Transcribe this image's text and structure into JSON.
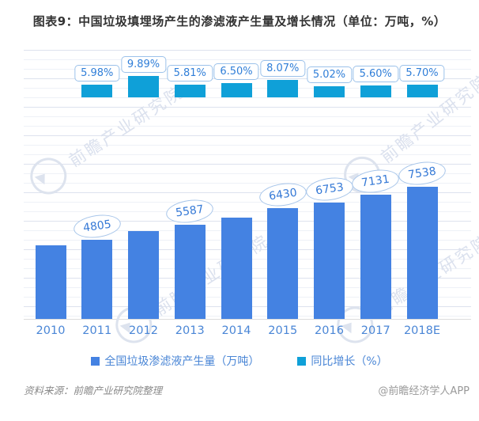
{
  "title": "图表9：中国垃圾填埋场产生的渗滤液产生量及增长情况（单位：万吨，%）",
  "chart_data": {
    "type": "bar",
    "categories": [
      "2010",
      "2011",
      "2012",
      "2013",
      "2014",
      "2015",
      "2016",
      "2017",
      "2018E"
    ],
    "series": [
      {
        "name": "全国垃圾渗滤液产生量（万吨）",
        "color": "#4482e2",
        "values": [
          4534,
          4805,
          5280,
          5587,
          5950,
          6430,
          6753,
          7131,
          7538
        ],
        "data_labels": [
          null,
          "4805",
          null,
          "5587",
          null,
          "6430",
          "6753",
          "7131",
          "7538"
        ]
      },
      {
        "name": "同比增长（%）",
        "color": "#0fa0d8",
        "values": [
          null,
          5.98,
          9.89,
          5.81,
          6.5,
          8.07,
          5.02,
          5.6,
          5.7
        ],
        "data_labels": [
          null,
          "5.98%",
          "9.89%",
          "5.81%",
          "6.50%",
          "8.07%",
          "5.02%",
          "5.60%",
          "5.70%"
        ]
      }
    ],
    "title": "图表9：中国垃圾填埋场产生的渗滤液产生量及增长情况（单位：万吨，%）",
    "xlabel": "",
    "ylabel": "",
    "y_axis_labels_visible": false,
    "grid": true,
    "legend_position": "bottom"
  },
  "legend": {
    "items": [
      {
        "label": "全国垃圾渗滤液产生量（万吨）",
        "color": "#4482e2"
      },
      {
        "label": "同比增长（%）",
        "color": "#0fa0d8"
      }
    ]
  },
  "footer": {
    "source": "资料来源：前瞻产业研究院整理",
    "brand": "@前瞻经济学人APP"
  },
  "watermark": {
    "text": "前瞻产业研究院",
    "logo_name": "qianzhan-logo-icon"
  }
}
